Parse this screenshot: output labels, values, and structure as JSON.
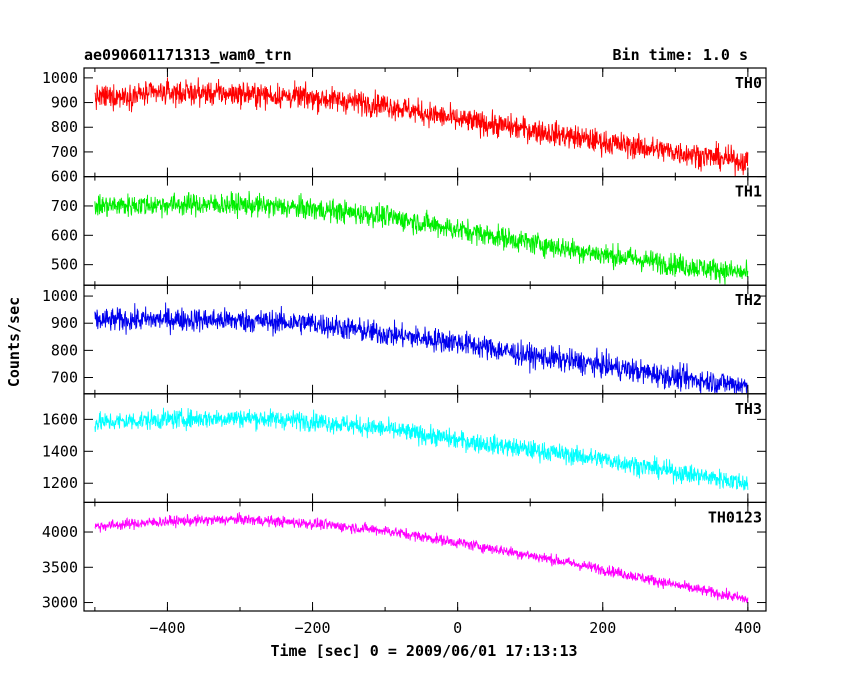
{
  "chart_data": {
    "type": "line",
    "title": "ae090601171313_wam0_trn",
    "subtitle": "Bin time: 1.0 s",
    "xlabel": "Time [sec] 0 = 2009/06/01 17:13:13",
    "ylabel": "Counts/sec",
    "xlim": [
      -515,
      425
    ],
    "xticks": [
      -400,
      -200,
      0,
      200,
      400
    ],
    "x_tick_labels": [
      "−400",
      "−200",
      "0",
      "200",
      "400"
    ],
    "x_sample": [
      -500,
      -400,
      -300,
      -200,
      -100,
      0,
      100,
      200,
      300,
      400
    ],
    "panels": [
      {
        "name": "TH0",
        "color": "#ff0000",
        "ylim": [
          600,
          1040
        ],
        "yticks": [
          600,
          700,
          800,
          900,
          1000
        ],
        "y_tick_labels": [
          "600",
          "700",
          "800",
          "900",
          "1000"
        ],
        "values": [
          920,
          940,
          935,
          920,
          890,
          830,
          790,
          740,
          700,
          660
        ],
        "noise": 45
      },
      {
        "name": "TH1",
        "color": "#00ee00",
        "ylim": [
          430,
          800
        ],
        "yticks": [
          500,
          600,
          700
        ],
        "y_tick_labels": [
          "500",
          "600",
          "700"
        ],
        "values": [
          700,
          705,
          705,
          690,
          665,
          620,
          575,
          535,
          500,
          470
        ],
        "noise": 35
      },
      {
        "name": "TH2",
        "color": "#0000ee",
        "ylim": [
          640,
          1040
        ],
        "yticks": [
          700,
          800,
          900,
          1000
        ],
        "y_tick_labels": [
          "700",
          "800",
          "900",
          "1000"
        ],
        "values": [
          910,
          915,
          910,
          900,
          860,
          830,
          780,
          745,
          700,
          670
        ],
        "noise": 40
      },
      {
        "name": "TH3",
        "color": "#00ffff",
        "ylim": [
          1080,
          1760
        ],
        "yticks": [
          1200,
          1400,
          1600
        ],
        "y_tick_labels": [
          "1200",
          "1400",
          "1600"
        ],
        "values": [
          1580,
          1600,
          1610,
          1590,
          1540,
          1470,
          1410,
          1350,
          1270,
          1200
        ],
        "noise": 55
      },
      {
        "name": "TH0123",
        "color": "#ff00ff",
        "ylim": [
          2880,
          4420
        ],
        "yticks": [
          3000,
          3500,
          4000
        ],
        "y_tick_labels": [
          "3000",
          "3500",
          "4000"
        ],
        "values": [
          4080,
          4150,
          4180,
          4120,
          4020,
          3850,
          3670,
          3470,
          3250,
          3040
        ],
        "noise": 70
      }
    ]
  }
}
